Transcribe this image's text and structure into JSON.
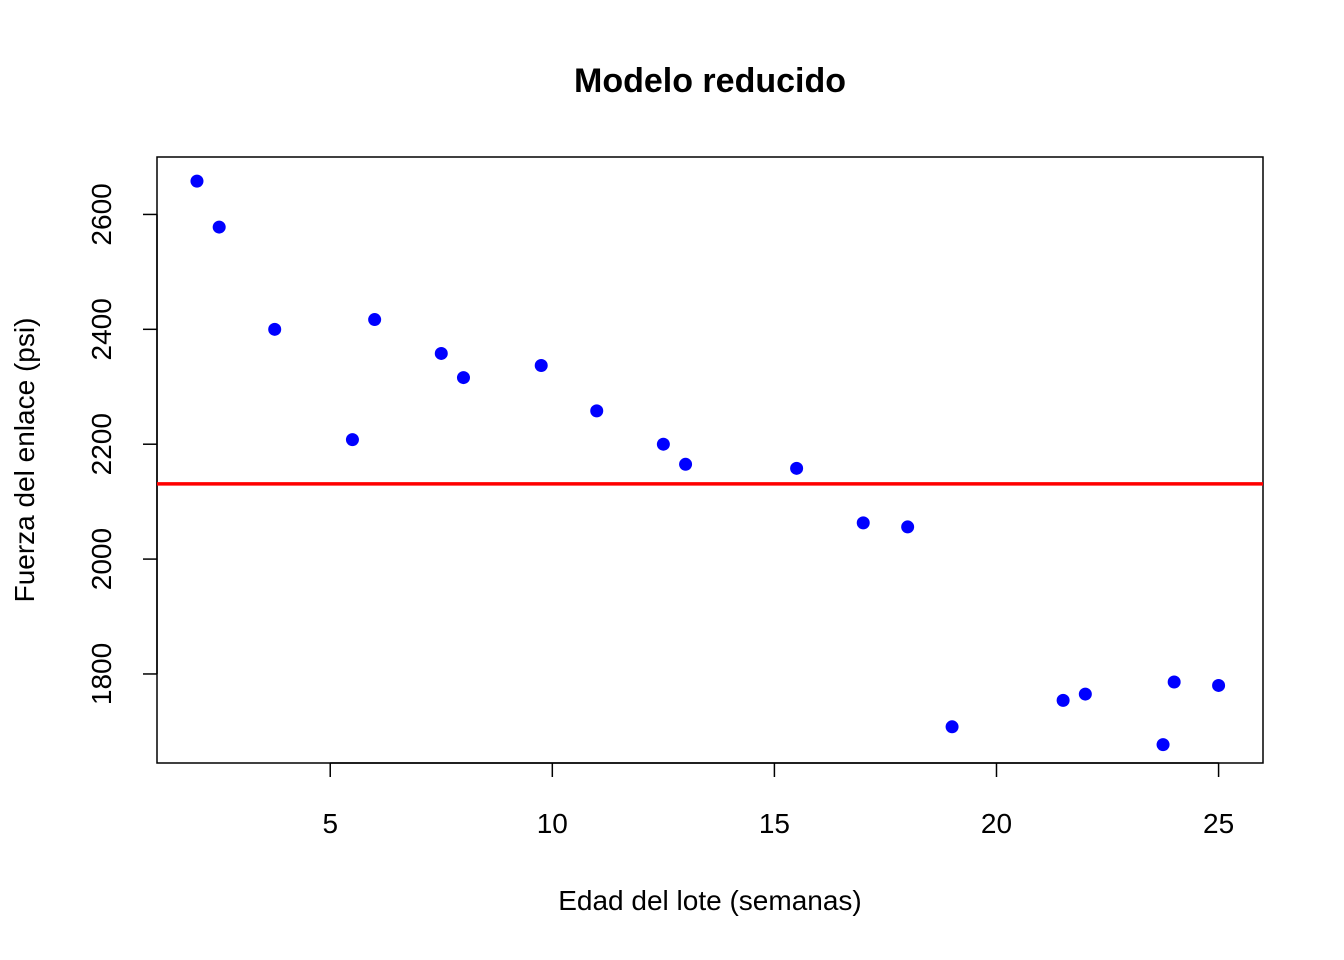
{
  "chart_data": {
    "type": "scatter",
    "title": "Modelo reducido",
    "xlabel": "Edad del lote (semanas)",
    "ylabel": "Fuerza del enlace (psi)",
    "xlim": [
      1.1,
      26.0
    ],
    "ylim": [
      1645,
      2700
    ],
    "x_ticks": [
      5,
      10,
      15,
      20,
      25
    ],
    "y_ticks": [
      1800,
      2000,
      2200,
      2400,
      2600
    ],
    "grid": false,
    "legend": "none",
    "point_color": "#0000ff",
    "line_color": "#ff0000",
    "reference_line_y": 2131,
    "points": [
      {
        "x": 2.0,
        "y": 2658
      },
      {
        "x": 2.5,
        "y": 2578
      },
      {
        "x": 3.75,
        "y": 2400
      },
      {
        "x": 5.5,
        "y": 2208
      },
      {
        "x": 6.0,
        "y": 2417
      },
      {
        "x": 7.5,
        "y": 2358
      },
      {
        "x": 8.0,
        "y": 2316
      },
      {
        "x": 9.75,
        "y": 2337
      },
      {
        "x": 11.0,
        "y": 2258
      },
      {
        "x": 12.5,
        "y": 2200
      },
      {
        "x": 13.0,
        "y": 2165
      },
      {
        "x": 15.5,
        "y": 2158
      },
      {
        "x": 17.0,
        "y": 2063
      },
      {
        "x": 18.0,
        "y": 2056
      },
      {
        "x": 19.0,
        "y": 1708
      },
      {
        "x": 21.5,
        "y": 1754
      },
      {
        "x": 22.0,
        "y": 1765
      },
      {
        "x": 23.75,
        "y": 1677
      },
      {
        "x": 24.0,
        "y": 1786
      },
      {
        "x": 25.0,
        "y": 1780
      }
    ]
  }
}
